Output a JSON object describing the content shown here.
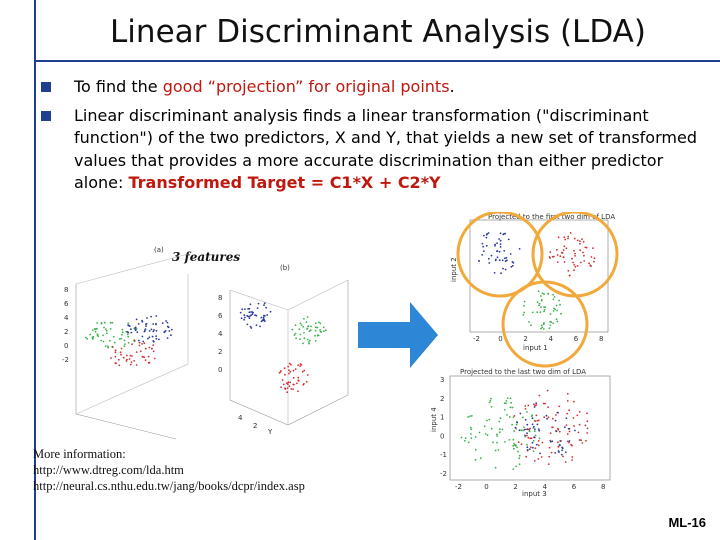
{
  "slide": {
    "title": "Linear Discriminant Analysis (LDA)",
    "slide_number": "ML-16",
    "accent_color": "#1f3f8f",
    "highlight_color": "#c0180f"
  },
  "bullets": [
    {
      "prefix": "To find the ",
      "highlight": "good “projection” for original points",
      "suffix": "."
    },
    {
      "text": "Linear discriminant analysis finds a linear transformation (\"discriminant function\") of the two predictors, X and Y, that yields a new set of transformed values that provides a more accurate discrimination than either predictor alone: ",
      "highlight": "Transformed Target = C1*X + C2*Y"
    }
  ],
  "figure": {
    "features_label": "3 features",
    "plot_a_label": "(a)",
    "plot_b_label": "(b)",
    "plot_c_title": "Projected to the first two dim of LDA",
    "plot_c_xlabel": "input 1",
    "plot_c_ylabel": "input 2",
    "plot_d_title": "Projected to the last two dim of LDA",
    "plot_d_xlabel": "input 3",
    "plot_d_ylabel": "input 4",
    "plot_c_xticks": [
      "-2",
      "0",
      "2",
      "4",
      "6",
      "8"
    ],
    "plot_d_xticks": [
      "-2",
      "0",
      "2",
      "4",
      "6",
      "8"
    ],
    "plot_d_yticks": [
      "3",
      "2",
      "1",
      "0",
      "-1",
      "-2"
    ]
  },
  "info": {
    "heading": "More information:",
    "link1": "http://www.dtreg.com/lda.htm",
    "link2": "http://neural.cs.nthu.edu.tw/jang/books/dcpr/index.asp"
  }
}
